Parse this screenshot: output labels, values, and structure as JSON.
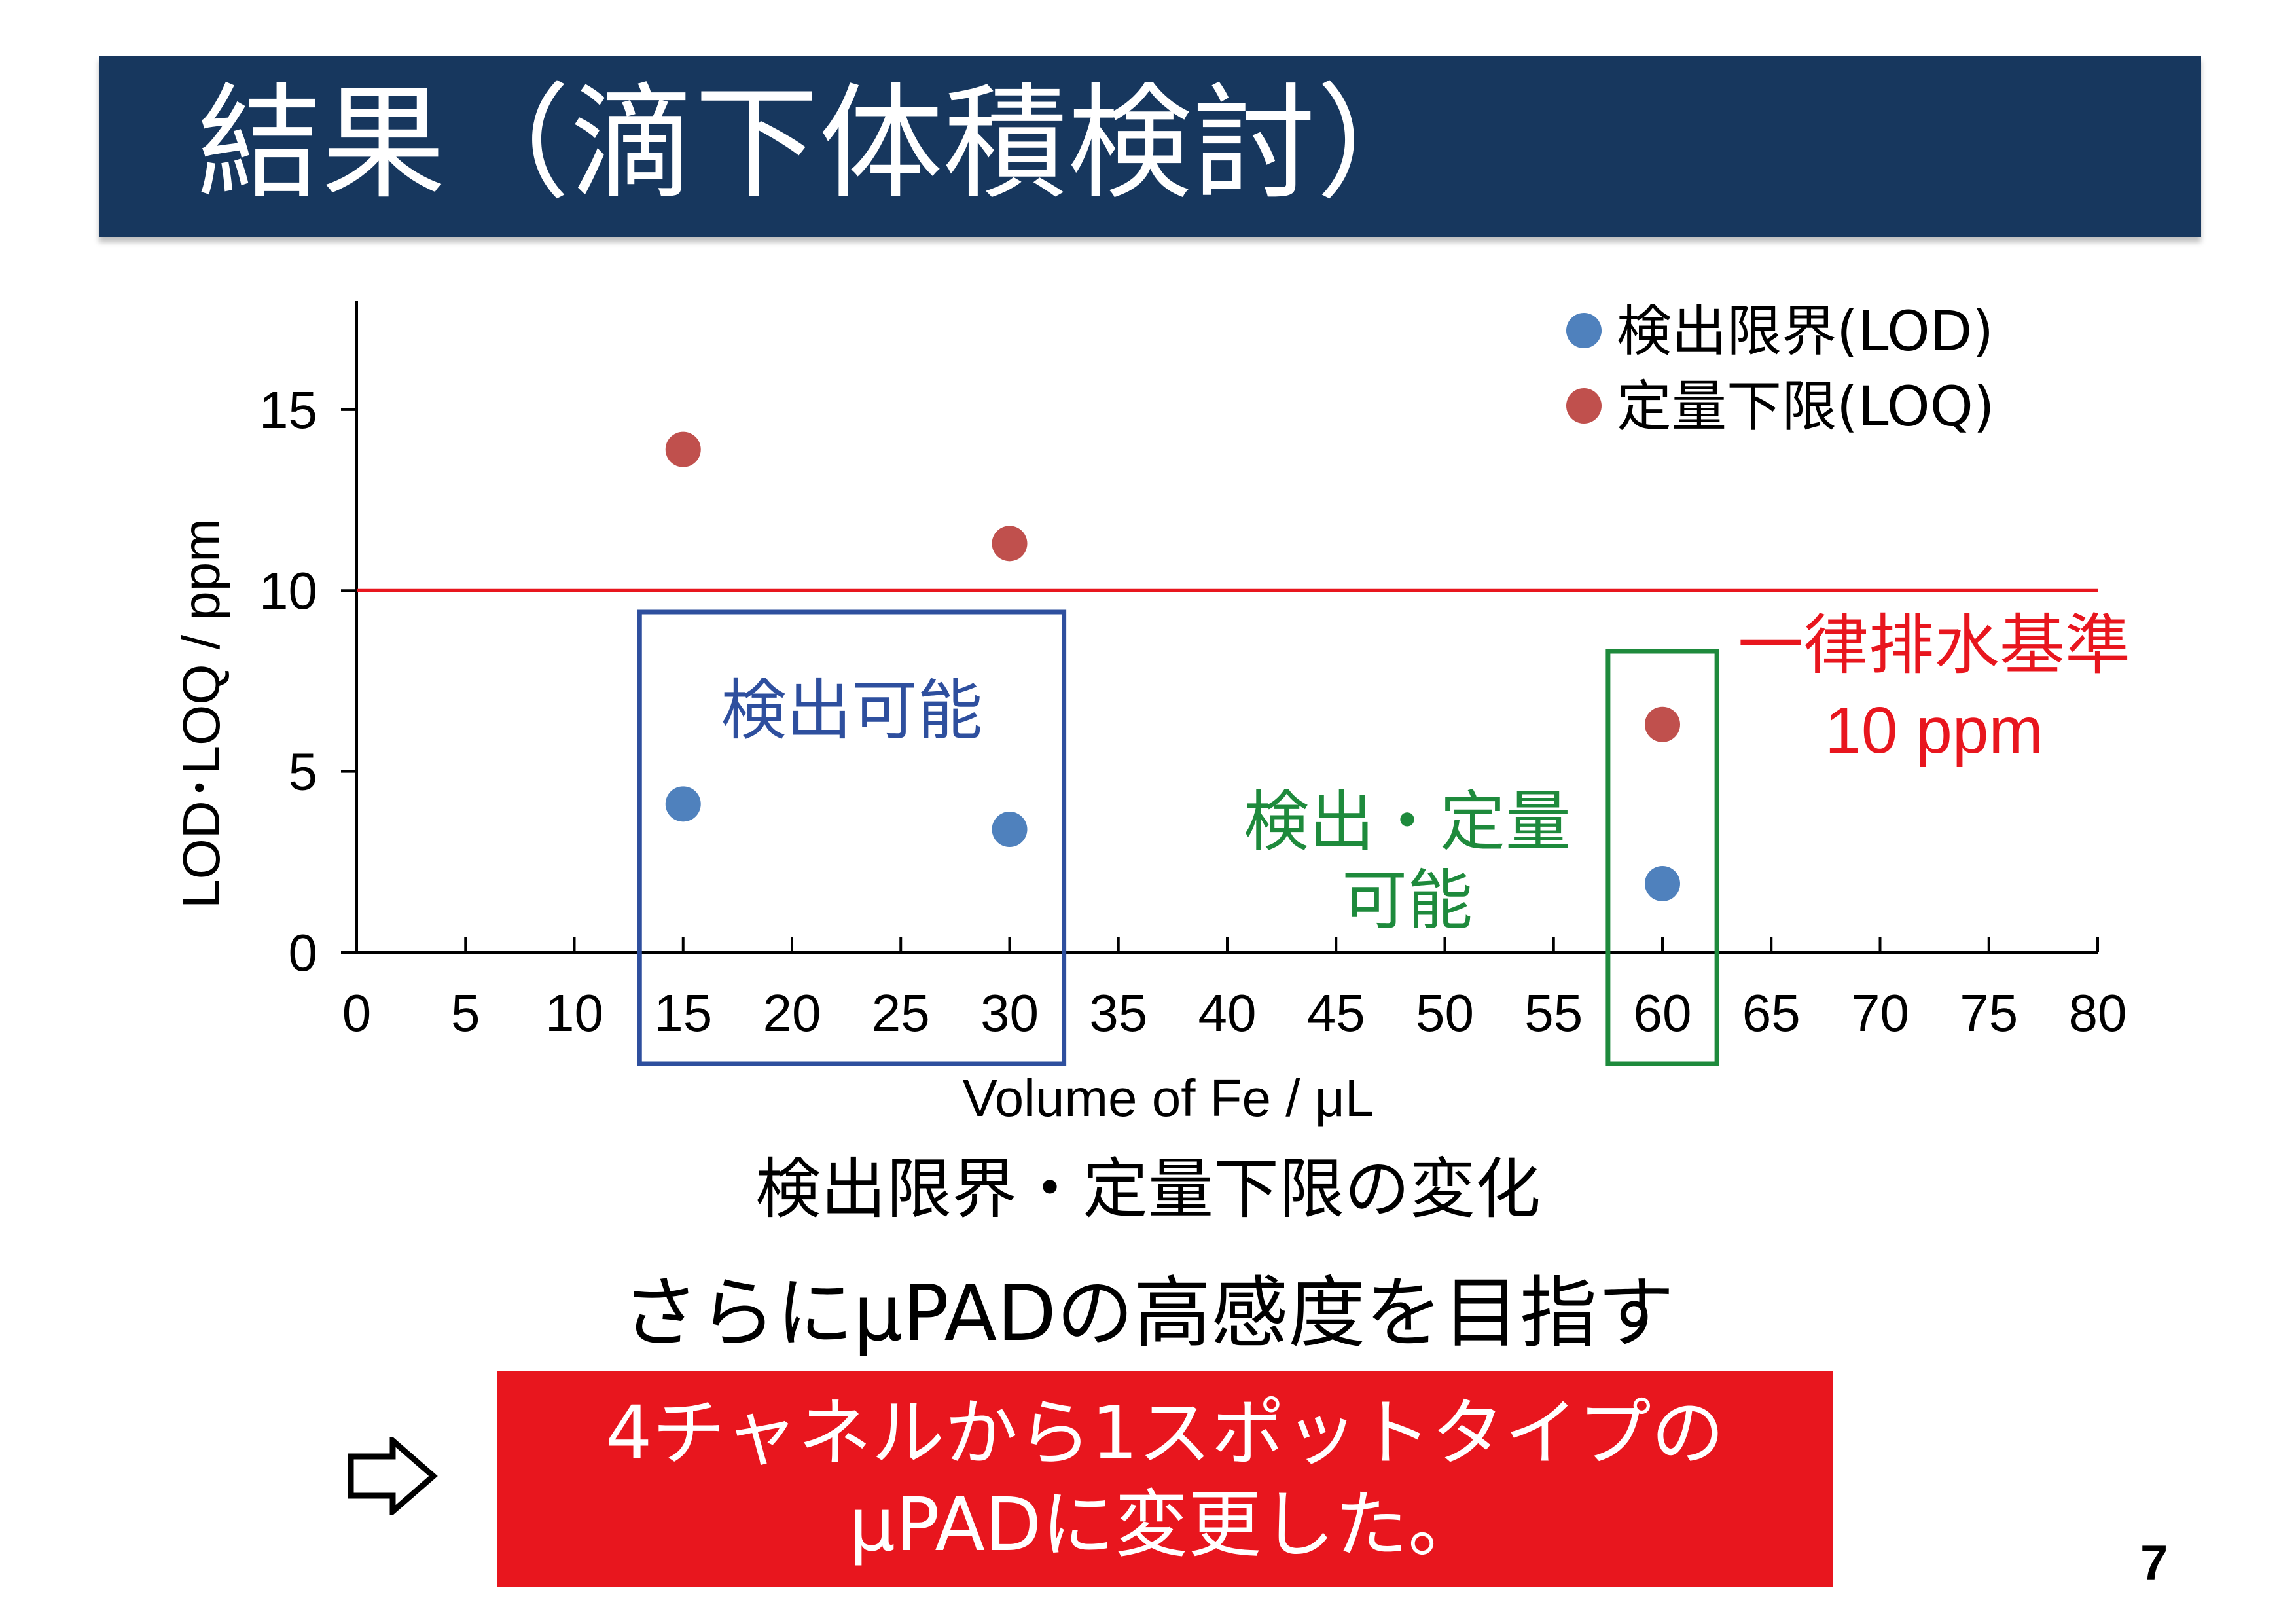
{
  "slide": {
    "title": "結果（滴下体積検討）",
    "caption": "検出限界・定量下限の変化",
    "goal_text": "さらにμPADの高感度を目指す",
    "action_line1": "4チャネルから1スポットタイプの",
    "action_line2": "μPADに変更した。",
    "page_number": "7",
    "colors": {
      "title_bg": "#17375e",
      "action_bg": "#e8161e"
    },
    "arrow_icon": "hollow-right-arrow-icon"
  },
  "chart_data": {
    "type": "scatter",
    "xlabel": "Volume of Fe / μL",
    "ylabel": "LOD･LOQ / ppm",
    "xlim": [
      0,
      80
    ],
    "ylim": [
      0,
      18
    ],
    "x_ticks": [
      "0",
      "5",
      "10",
      "15",
      "20",
      "25",
      "30",
      "35",
      "40",
      "45",
      "50",
      "55",
      "60",
      "65",
      "70",
      "75",
      "80"
    ],
    "y_ticks": [
      "0",
      "5",
      "10",
      "15"
    ],
    "grid": false,
    "legend_position": "top-right",
    "series": [
      {
        "name": "検出限界(LOD)",
        "color": "#4f81bd",
        "x": [
          15,
          30,
          60
        ],
        "y": [
          4.1,
          3.4,
          1.9
        ]
      },
      {
        "name": "定量下限(LOQ)",
        "color": "#c0504d",
        "x": [
          15,
          30,
          60
        ],
        "y": [
          13.9,
          11.3,
          6.3
        ]
      }
    ],
    "reference_line": {
      "y": 10,
      "color": "#e8161e",
      "label_line1": "一律排水基準",
      "label_line2": "10 ppm"
    },
    "highlight_boxes": [
      {
        "label": "検出可能",
        "color": "#2e4f9e",
        "x_from": 13,
        "x_to": 32.5
      },
      {
        "label_line1": "検出・定量",
        "label_line2": "可能",
        "color": "#1e8a3c",
        "x_from": 57.5,
        "x_to": 62.5
      }
    ]
  }
}
